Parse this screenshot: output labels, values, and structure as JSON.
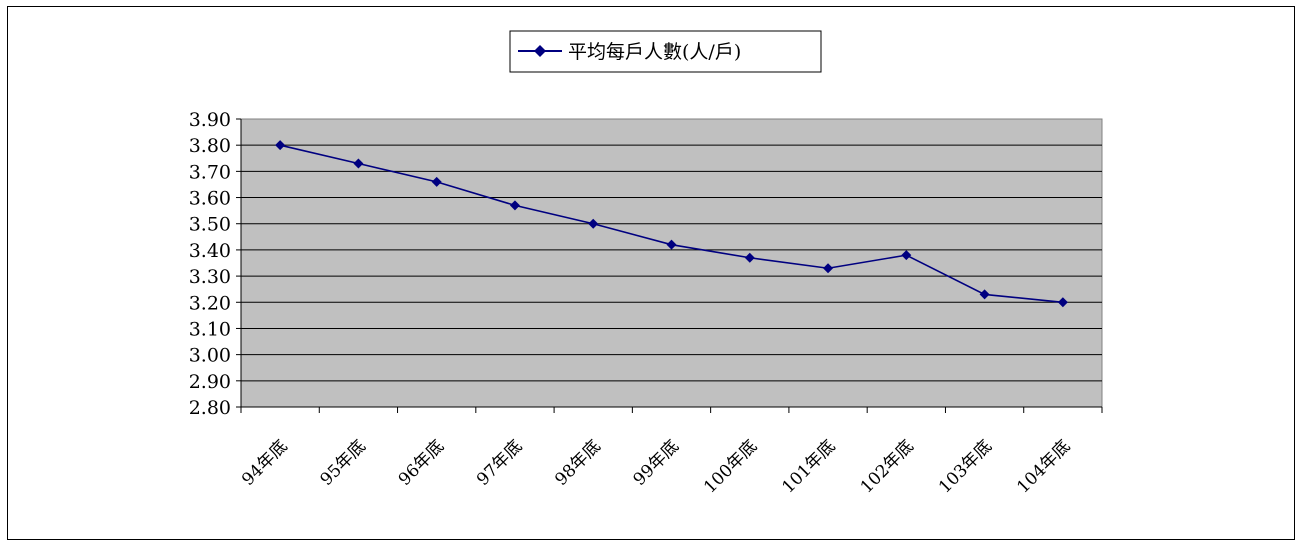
{
  "chart_data": {
    "type": "line",
    "title": "",
    "xlabel": "",
    "ylabel": "",
    "categories": [
      "94年底",
      "95年底",
      "96年底",
      "97年底",
      "98年底",
      "99年底",
      "100年底",
      "101年底",
      "102年底",
      "103年底",
      "104年底"
    ],
    "series": [
      {
        "name": "平均每戶人數(人/戶)",
        "values": [
          3.8,
          3.73,
          3.66,
          3.57,
          3.5,
          3.42,
          3.37,
          3.33,
          3.38,
          3.23,
          3.2
        ],
        "color": "#000080",
        "marker": "diamond"
      }
    ],
    "ylim": [
      2.8,
      3.9
    ],
    "yticks": [
      "3.90",
      "3.80",
      "3.70",
      "3.60",
      "3.50",
      "3.40",
      "3.30",
      "3.20",
      "3.10",
      "3.00",
      "2.90",
      "2.80"
    ],
    "grid": true,
    "plot_background": "#c0c0c0",
    "legend_position": "top-center"
  }
}
